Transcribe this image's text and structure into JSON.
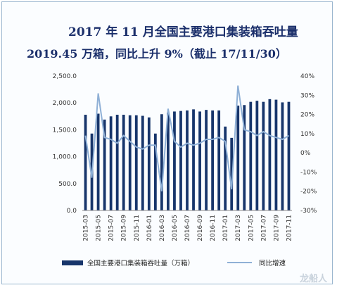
{
  "header": {
    "line1": "2017 年 11 月全国主要港口集装箱吞吐量",
    "line2": "2019.45 万箱，同比上升 9%（截止 17/11/30）"
  },
  "watermark": "龙船人",
  "colors": {
    "bar": "#17356b",
    "line": "#8fb0d6"
  },
  "chart_data": {
    "type": "bar+line",
    "title": "2017 年 11 月全国主要港口集装箱吞吐量",
    "categories": [
      "2015-03",
      "2015-04",
      "2015-05",
      "2015-06",
      "2015-07",
      "2015-08",
      "2015-09",
      "2015-10",
      "2015-11",
      "2015-12",
      "2016-01",
      "2016-02",
      "2016-03",
      "2016-04",
      "2016-05",
      "2016-06",
      "2016-07",
      "2016-08",
      "2016-09",
      "2016-10",
      "2016-11",
      "2016-12",
      "2017-01",
      "2017-02",
      "2017-03",
      "2017-04",
      "2017-05",
      "2017-06",
      "2017-07",
      "2017-08",
      "2017-09",
      "2017-10",
      "2017-11"
    ],
    "x_tick_labels": [
      "2015-03",
      "2015-05",
      "2015-07",
      "2015-09",
      "2015-11",
      "2016-01",
      "2016-03",
      "2016-05",
      "2016-07",
      "2016-09",
      "2016-11",
      "2017-01",
      "2017-03",
      "2017-05",
      "2017-07",
      "2017-09",
      "2017-11"
    ],
    "series": [
      {
        "name": "全国主要港口集装箱吞吐量（万箱）",
        "axis": "left",
        "kind": "bar",
        "values": [
          1780,
          1430,
          1800,
          1690,
          1750,
          1780,
          1780,
          1770,
          1770,
          1760,
          1730,
          1430,
          1790,
          1820,
          1840,
          1850,
          1860,
          1880,
          1840,
          1870,
          1860,
          1860,
          1560,
          1350,
          1950,
          1960,
          2020,
          2040,
          2020,
          2070,
          2060,
          2010,
          2020
        ]
      },
      {
        "name": "同比增速",
        "axis": "right",
        "kind": "line",
        "values": [
          9,
          -13,
          31,
          8,
          7,
          5,
          9,
          6,
          3,
          2,
          4,
          4,
          -20,
          23,
          6,
          3,
          5,
          4,
          5,
          7,
          7,
          8,
          6,
          -19,
          35,
          12,
          11,
          9,
          11,
          9,
          8,
          7,
          9
        ]
      }
    ],
    "y_left": {
      "ticks": [
        "0.0",
        "500.0",
        "1,000.0",
        "1,500.0",
        "2,000.0",
        "2,500.0"
      ],
      "min": 0,
      "max": 2500
    },
    "y_right": {
      "ticks": [
        "-30%",
        "-20%",
        "-10%",
        "0%",
        "10%",
        "20%",
        "30%",
        "40%"
      ],
      "min": -30,
      "max": 40
    },
    "legend": {
      "position": "bottom"
    },
    "grid": false
  }
}
